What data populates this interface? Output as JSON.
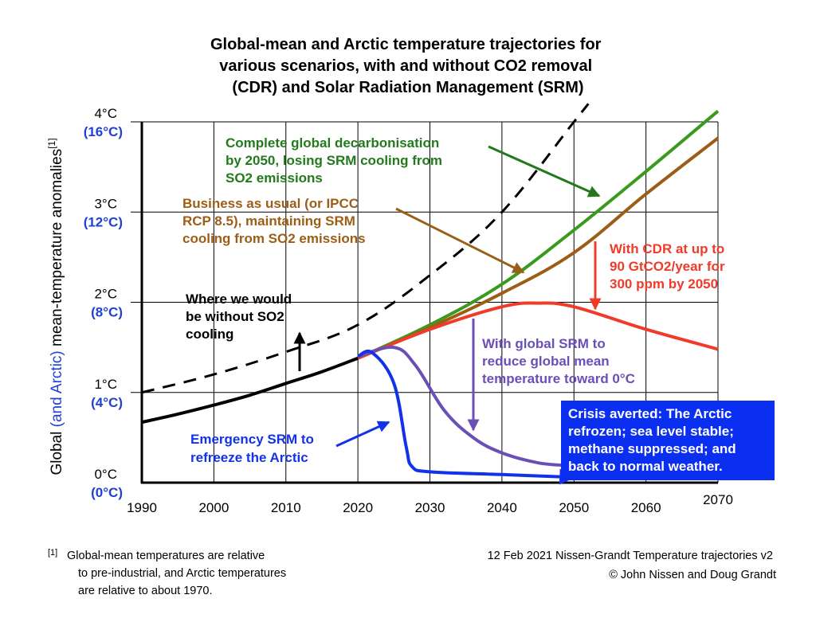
{
  "colors": {
    "black": "#000000",
    "green": "#3a9a1e",
    "green_text": "#237a1c",
    "brown": "#9c5e17",
    "red": "#ef3b2a",
    "purple": "#6b4fb8",
    "blue": "#1232ea",
    "blue_label": "#1f3fd6",
    "box": "#0b2ff0"
  },
  "chart_data": {
    "type": "line",
    "title": "Global-mean and Arctic temperature trajectories for various scenarios, with and without CO2 removal (CDR) and Solar Radiation Management (SRM)",
    "title_lines": [
      "Global-mean and Arctic temperature trajectories for",
      "various scenarios, with and without CO2 removal",
      "(CDR) and Solar Radiation Management (SRM)"
    ],
    "ylabel": {
      "part1": "Global ",
      "part2": "(and Arctic)",
      "part3": " mean-temperature anomalies",
      "superscript": "[1]"
    },
    "xlim": [
      1990,
      2070
    ],
    "ylim": [
      0,
      4
    ],
    "x_ticks": [
      "1990",
      "2000",
      "2010",
      "2020",
      "2030",
      "2040",
      "2050",
      "2060",
      "2070"
    ],
    "x_tick_values": [
      1990,
      2000,
      2010,
      2020,
      2030,
      2040,
      2050,
      2060,
      2070
    ],
    "y_ticks": [
      {
        "value": 0,
        "label": "0°C",
        "arctic": "(0°C)"
      },
      {
        "value": 1,
        "label": "1°C",
        "arctic": "(4°C)"
      },
      {
        "value": 2,
        "label": "2°C",
        "arctic": "(8°C)"
      },
      {
        "value": 3,
        "label": "3°C",
        "arctic": "(12°C)"
      },
      {
        "value": 4,
        "label": "4°C",
        "arctic": "(16°C)"
      }
    ],
    "grid": true,
    "series": [
      {
        "name": "Historical",
        "color": "black",
        "width": 4,
        "x": [
          1990,
          1995,
          2000,
          2005,
          2010,
          2015,
          2020
        ],
        "y": [
          0.67,
          0.76,
          0.86,
          0.97,
          1.1,
          1.23,
          1.38
        ]
      },
      {
        "name": "Where we would be without SO2 cooling",
        "color": "black",
        "width": 3,
        "dashed": true,
        "x": [
          1990,
          2000,
          2010,
          2020,
          2030,
          2040,
          2050,
          2052
        ],
        "y": [
          1.0,
          1.2,
          1.45,
          1.75,
          2.3,
          3.0,
          4.0,
          4.2
        ]
      },
      {
        "name": "Business as usual",
        "color": "brown",
        "width": 4,
        "x": [
          2020,
          2030,
          2040,
          2050,
          2060,
          2070
        ],
        "y": [
          1.38,
          1.72,
          2.1,
          2.55,
          3.2,
          3.82
        ]
      },
      {
        "name": "Complete global decarbonisation by 2050",
        "color": "green",
        "width": 4,
        "x": [
          2020,
          2030,
          2040,
          2050,
          2060,
          2070
        ],
        "y": [
          1.38,
          1.75,
          2.2,
          2.8,
          3.45,
          4.12
        ]
      },
      {
        "name": "With CDR",
        "color": "red",
        "width": 4,
        "x": [
          2020,
          2030,
          2040,
          2045,
          2050,
          2060,
          2070
        ],
        "y": [
          1.38,
          1.7,
          1.95,
          1.99,
          1.95,
          1.7,
          1.48
        ]
      },
      {
        "name": "With global SRM",
        "color": "purple",
        "width": 4,
        "x": [
          2020,
          2025,
          2028,
          2032,
          2036,
          2040,
          2045,
          2049
        ],
        "y": [
          1.4,
          1.5,
          1.3,
          0.8,
          0.5,
          0.33,
          0.22,
          0.19
        ]
      },
      {
        "name": "Emergency SRM",
        "color": "blue",
        "width": 4,
        "x": [
          2020,
          2022,
          2025,
          2026.7,
          2027.5,
          2030,
          2040,
          2050
        ],
        "y": [
          1.4,
          1.44,
          1.1,
          0.4,
          0.18,
          0.12,
          0.09,
          0.06
        ]
      }
    ],
    "annotations": [
      {
        "id": "decarb",
        "color": "green_text",
        "lines": [
          "Complete global decarbonisation",
          "by 2050, losing SRM cooling from",
          "SO2 emissions"
        ]
      },
      {
        "id": "bau",
        "color": "brown",
        "lines": [
          "Business as usual (or IPCC",
          "RCP 8.5), maintaining SRM",
          "cooling from SO2 emissions"
        ]
      },
      {
        "id": "cdr",
        "color": "red",
        "lines": [
          "With CDR at up to",
          "90 GtCO2/year for",
          "300 ppm by 2050"
        ]
      },
      {
        "id": "noso2",
        "color": "black",
        "lines": [
          "Where we would",
          "be without SO2",
          "cooling"
        ]
      },
      {
        "id": "gsrm",
        "color": "purple",
        "lines": [
          "With global SRM to",
          "reduce global mean",
          "temperature toward 0°C"
        ]
      },
      {
        "id": "esrm",
        "color": "blue",
        "lines": [
          "Emergency SRM to",
          "refreeze the Arctic"
        ]
      }
    ],
    "crisis_box": [
      "Crisis averted: The Arctic",
      "refrozen; sea level stable;",
      "methane suppressed; and",
      "back to normal weather."
    ]
  },
  "footnote": {
    "marker": "[1]",
    "lines": [
      "Global-mean temperatures are relative",
      "to pre-industrial, and Arctic temperatures",
      "are relative to about 1970."
    ]
  },
  "credit": {
    "line1": "12 Feb 2021 Nissen-Grandt Temperature trajectories v2",
    "line2": "© John Nissen and Doug Grandt"
  }
}
